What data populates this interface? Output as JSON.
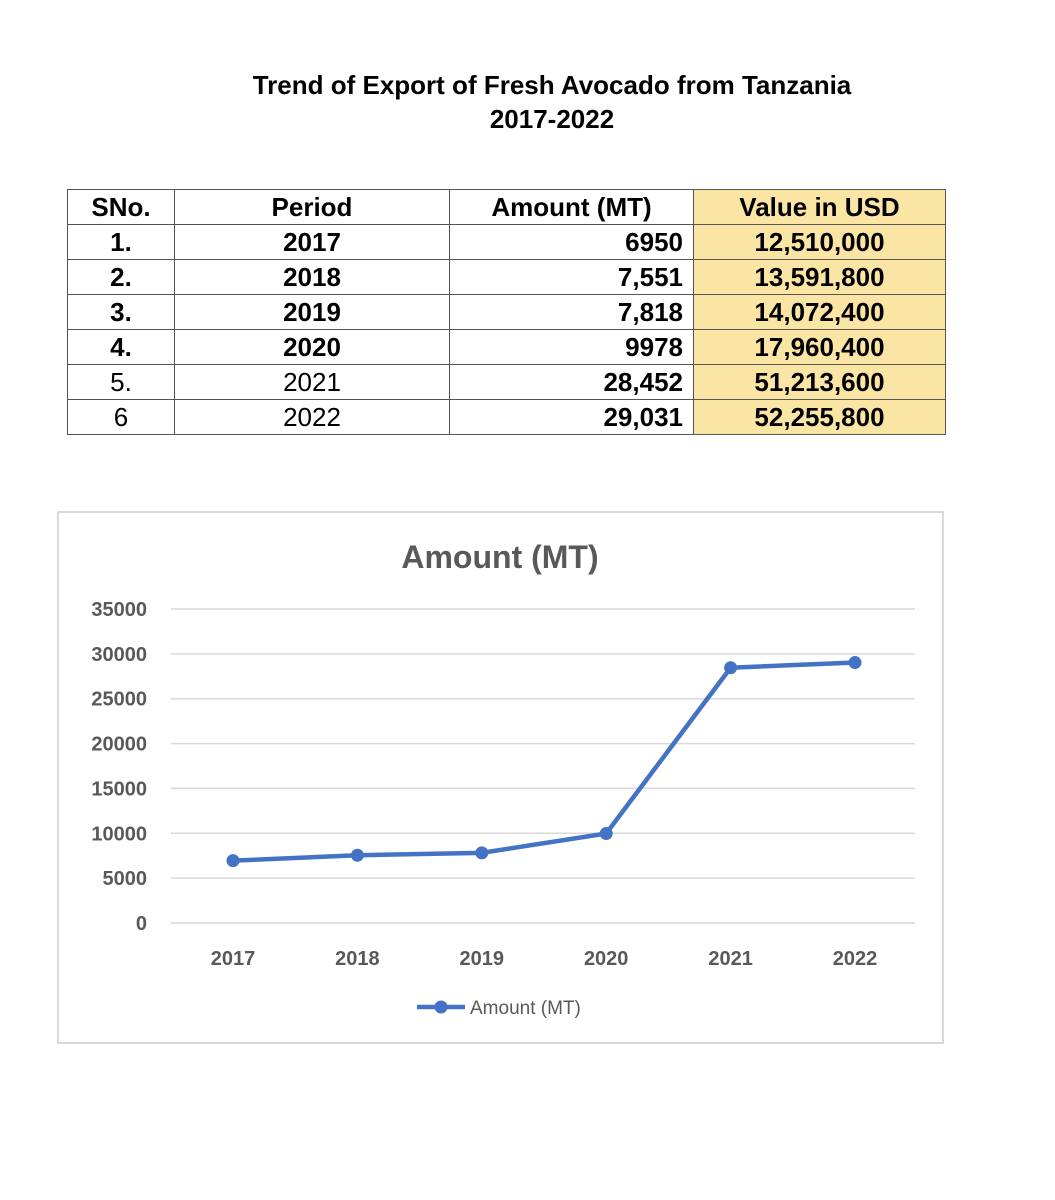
{
  "document": {
    "title_line1": "Trend of Export of Fresh Avocado from Tanzania",
    "title_line2": "2017-2022"
  },
  "table": {
    "headers": [
      "SNo.",
      "Period",
      "Amount (MT)",
      "Value in USD"
    ],
    "rows": [
      {
        "sno": "1.",
        "period": "2017",
        "amount": "6950",
        "value": "12,510,000",
        "bold": true
      },
      {
        "sno": "2.",
        "period": "2018",
        "amount": "7,551",
        "value": "13,591,800",
        "bold": true
      },
      {
        "sno": "3.",
        "period": "2019",
        "amount": "7,818",
        "value": "14,072,400",
        "bold": true
      },
      {
        "sno": "4.",
        "period": "2020",
        "amount": "9978",
        "value": "17,960,400",
        "bold": true
      },
      {
        "sno": "5.",
        "period": "2021",
        "amount": "28,452",
        "value": "51,213,600",
        "bold": false
      },
      {
        "sno": "6",
        "period": "2022",
        "amount": "29,031",
        "value": "52,255,800",
        "bold": false
      }
    ],
    "value_column_fill": "#fbe5a4"
  },
  "chart_data": {
    "type": "line",
    "title": "Amount (MT)",
    "categories": [
      "2017",
      "2018",
      "2019",
      "2020",
      "2021",
      "2022"
    ],
    "series": [
      {
        "name": "Amount (MT)",
        "values": [
          6950,
          7551,
          7818,
          9978,
          28452,
          29031
        ],
        "color": "#4472c4"
      }
    ],
    "ylim": [
      0,
      35000
    ],
    "yticks": [
      0,
      5000,
      10000,
      15000,
      20000,
      25000,
      30000,
      35000
    ],
    "grid": true,
    "legend": "bottom"
  }
}
